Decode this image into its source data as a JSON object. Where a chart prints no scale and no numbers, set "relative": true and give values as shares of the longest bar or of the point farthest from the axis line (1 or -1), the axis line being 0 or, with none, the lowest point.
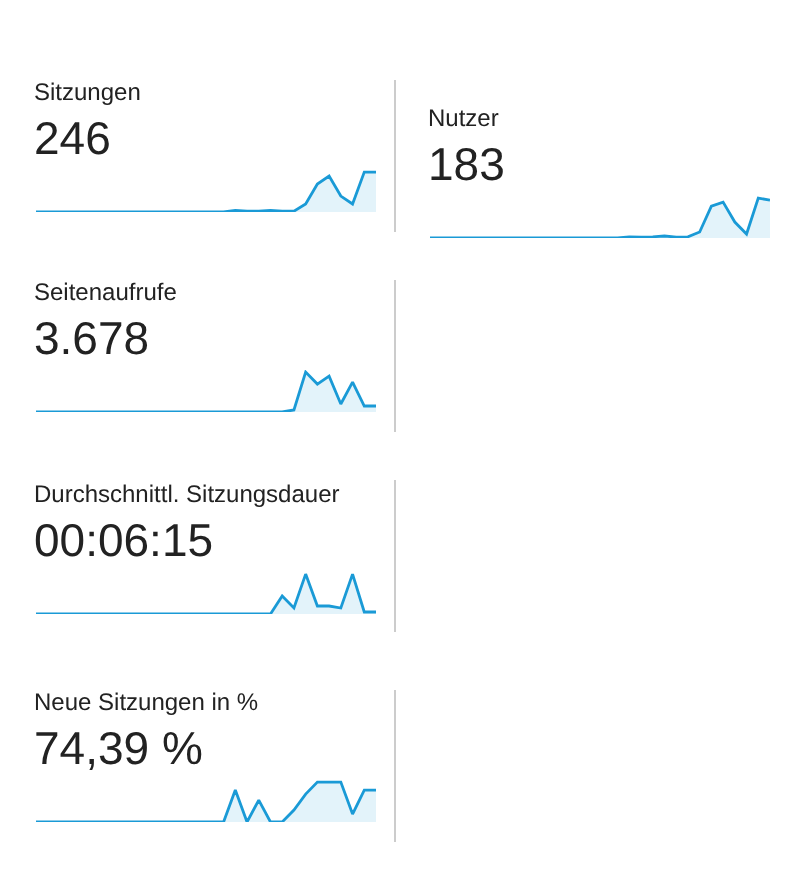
{
  "chart_data": [
    {
      "type": "area",
      "title": "Sitzungen",
      "subtitle": "246",
      "relative": true,
      "color": "#1a9ad6",
      "categories": [
        null,
        null,
        null,
        null,
        null,
        null,
        null,
        null,
        null,
        null,
        null,
        null,
        null,
        null,
        null,
        null,
        null,
        null,
        null,
        null,
        null,
        null,
        null,
        null,
        null,
        null,
        null,
        null,
        null,
        null
      ],
      "values": [
        0,
        0,
        0,
        0,
        0,
        0,
        0,
        0,
        0,
        0,
        0,
        0,
        0,
        0,
        0,
        0,
        0,
        0.04,
        0.02,
        0.02,
        0.04,
        0.02,
        0.02,
        0.2,
        0.7,
        0.9,
        0.4,
        0.2,
        1,
        1
      ]
    },
    {
      "type": "area",
      "title": "Nutzer",
      "subtitle": "183",
      "relative": true,
      "color": "#1a9ad6",
      "categories": [
        null,
        null,
        null,
        null,
        null,
        null,
        null,
        null,
        null,
        null,
        null,
        null,
        null,
        null,
        null,
        null,
        null,
        null,
        null,
        null,
        null,
        null,
        null,
        null,
        null,
        null,
        null,
        null,
        null,
        null
      ],
      "values": [
        0,
        0,
        0,
        0,
        0,
        0,
        0,
        0,
        0,
        0,
        0,
        0,
        0,
        0,
        0,
        0,
        0,
        0.03,
        0.02,
        0.03,
        0.05,
        0.02,
        0.03,
        0.15,
        0.8,
        0.9,
        0.4,
        0.1,
        1,
        0.95
      ]
    },
    {
      "type": "area",
      "title": "Seitenaufrufe",
      "subtitle": "3.678",
      "relative": true,
      "color": "#1a9ad6",
      "categories": [
        null,
        null,
        null,
        null,
        null,
        null,
        null,
        null,
        null,
        null,
        null,
        null,
        null,
        null,
        null,
        null,
        null,
        null,
        null,
        null,
        null,
        null,
        null,
        null,
        null,
        null,
        null,
        null,
        null,
        null
      ],
      "values": [
        0,
        0,
        0,
        0,
        0,
        0,
        0,
        0,
        0,
        0,
        0,
        0,
        0,
        0,
        0,
        0,
        0,
        0,
        0,
        0,
        0,
        0,
        0.05,
        1,
        0.7,
        0.9,
        0.2,
        0.75,
        0.15,
        0.15
      ]
    },
    {
      "type": "area",
      "title": "Durchschnittl. Sitzungsdauer",
      "subtitle": "00:06:15",
      "relative": true,
      "color": "#1a9ad6",
      "categories": [
        null,
        null,
        null,
        null,
        null,
        null,
        null,
        null,
        null,
        null,
        null,
        null,
        null,
        null,
        null,
        null,
        null,
        null,
        null,
        null,
        null,
        null,
        null,
        null,
        null,
        null,
        null,
        null,
        null,
        null
      ],
      "values": [
        0,
        0,
        0,
        0,
        0,
        0,
        0,
        0,
        0,
        0,
        0,
        0,
        0,
        0,
        0,
        0,
        0,
        0,
        0,
        0,
        0,
        0.45,
        0.15,
        1,
        0.2,
        0.2,
        0.15,
        1,
        0.05,
        0.05
      ]
    },
    {
      "type": "area",
      "title": "Neue Sitzungen in %",
      "subtitle": "74,39 %",
      "relative": true,
      "color": "#1a9ad6",
      "categories": [
        null,
        null,
        null,
        null,
        null,
        null,
        null,
        null,
        null,
        null,
        null,
        null,
        null,
        null,
        null,
        null,
        null,
        null,
        null,
        null,
        null,
        null,
        null,
        null,
        null,
        null,
        null,
        null,
        null,
        null
      ],
      "values": [
        0,
        0,
        0,
        0,
        0,
        0,
        0,
        0,
        0,
        0,
        0,
        0,
        0,
        0,
        0,
        0,
        0,
        0.8,
        0,
        0.55,
        0,
        0,
        0.3,
        0.7,
        1,
        1,
        1,
        0.2,
        0.8,
        0.8
      ]
    }
  ]
}
